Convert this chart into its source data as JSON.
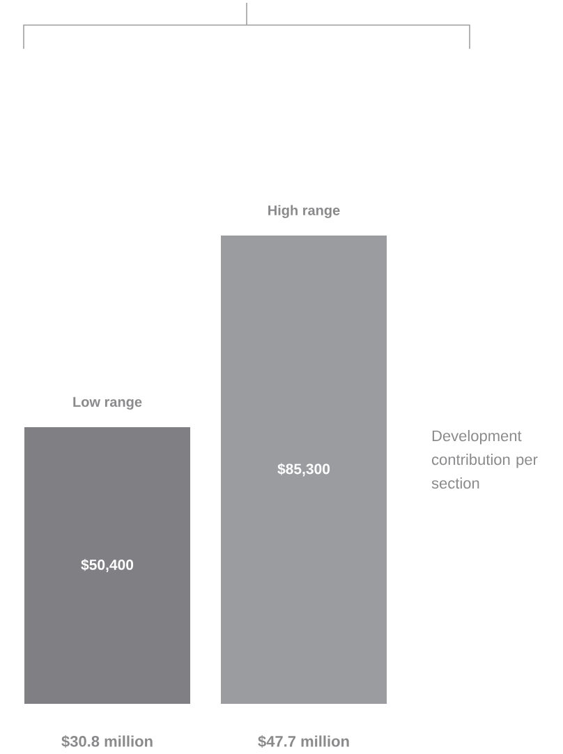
{
  "chart_data": {
    "type": "bar",
    "categories": [
      "Low range",
      "High range"
    ],
    "values": [
      50400,
      85300
    ],
    "colors": [
      "#808084",
      "#9b9ca0"
    ],
    "value_labels": [
      "$50,400",
      "$85,300"
    ],
    "annotations": [
      {
        "text": "$30.8 million",
        "x": "Low range",
        "y": 0
      },
      {
        "text": "$47.7 million",
        "x": "High range",
        "y": 0
      },
      "Development contribution per section"
    ]
  }
}
